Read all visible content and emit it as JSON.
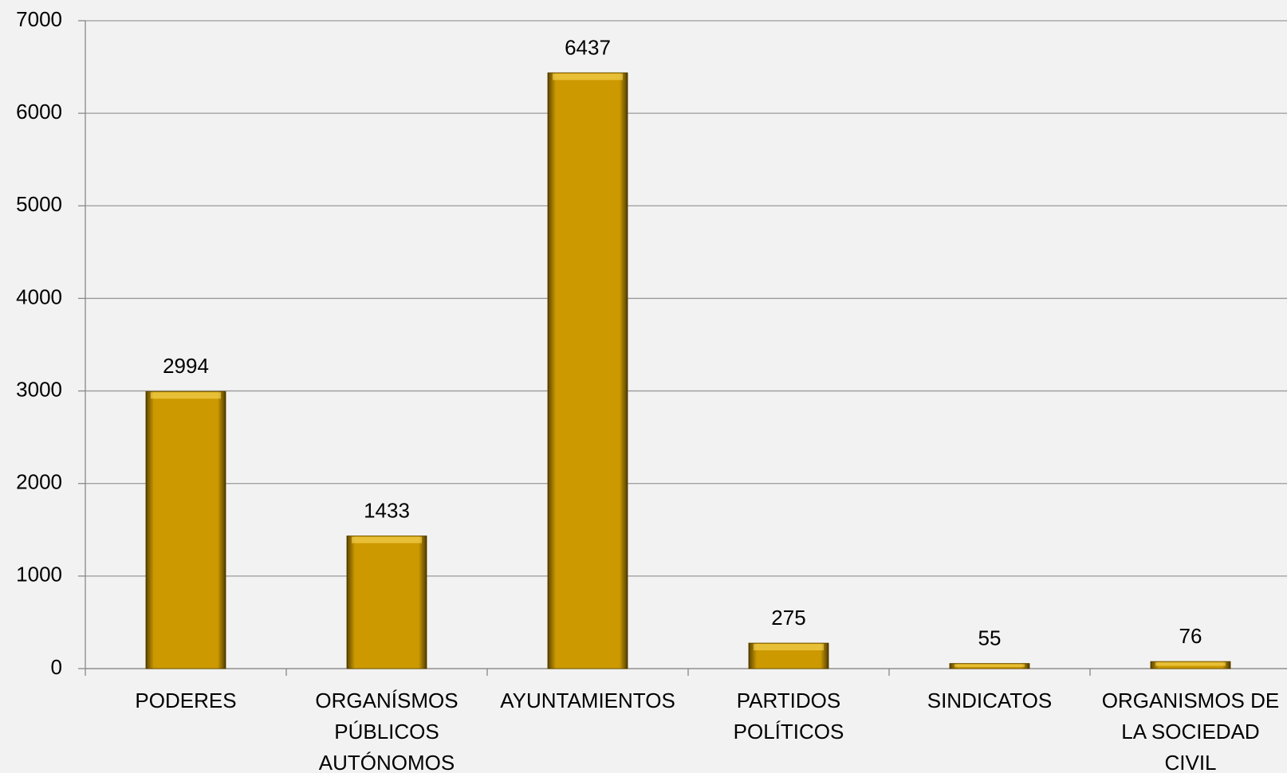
{
  "chart_data": {
    "type": "bar",
    "categories": [
      "PODERES",
      "ORGANÍSMOS PÚBLICOS AUTÓNOMOS",
      "AYUNTAMIENTOS",
      "PARTIDOS POLÍTICOS",
      "SINDICATOS",
      "ORGANISMOS DE LA SOCIEDAD CIVIL"
    ],
    "values": [
      2994,
      1433,
      6437,
      275,
      55,
      76
    ],
    "color": "#cc9900",
    "ylim": [
      0,
      7000
    ],
    "yticks": [
      0,
      1000,
      2000,
      3000,
      4000,
      5000,
      6000,
      7000
    ],
    "grid": true
  }
}
